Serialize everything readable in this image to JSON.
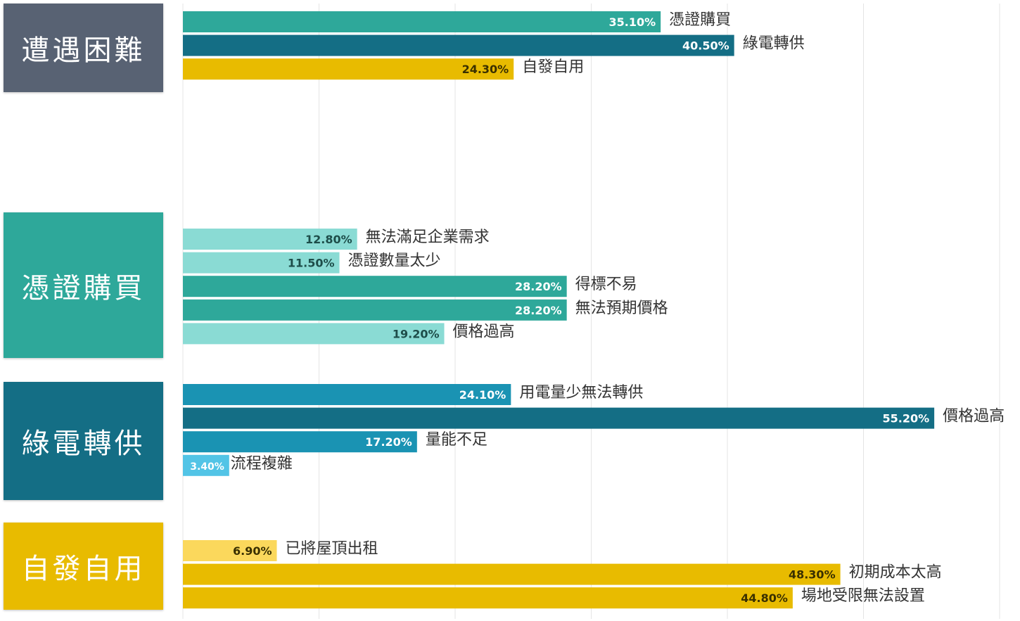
{
  "chart_data": {
    "type": "bar",
    "orientation": "horizontal",
    "unit": "%",
    "xlim": [
      0,
      60
    ],
    "grid": true,
    "groups": [
      {
        "title": "遭遇困難",
        "color": "#586273",
        "bars": [
          {
            "label": "憑證購買",
            "value": 35.1,
            "display": "35.10%",
            "color": "#2ea89a",
            "text_color": "#ffffff"
          },
          {
            "label": "綠電轉供",
            "value": 40.5,
            "display": "40.50%",
            "color": "#146e85",
            "text_color": "#ffffff"
          },
          {
            "label": "自發自用",
            "value": 24.3,
            "display": "24.30%",
            "color": "#e8bb00",
            "text_color": "#3a3000"
          }
        ]
      },
      {
        "title": "憑證購買",
        "color": "#2ea89a",
        "bars": [
          {
            "label": "無法滿足企業需求",
            "value": 12.8,
            "display": "12.80%",
            "color": "#8adbd4",
            "text_color": "#1d4d49"
          },
          {
            "label": "憑證數量太少",
            "value": 11.5,
            "display": "11.50%",
            "color": "#8adbd4",
            "text_color": "#1d4d49"
          },
          {
            "label": "得標不易",
            "value": 28.2,
            "display": "28.20%",
            "color": "#2ea89a",
            "text_color": "#ffffff"
          },
          {
            "label": "無法預期價格",
            "value": 28.2,
            "display": "28.20%",
            "color": "#2ea89a",
            "text_color": "#ffffff"
          },
          {
            "label": "價格過高",
            "value": 19.2,
            "display": "19.20%",
            "color": "#8adbd4",
            "text_color": "#1d4d49"
          }
        ]
      },
      {
        "title": "綠電轉供",
        "color": "#146e85",
        "bars": [
          {
            "label": "用電量少無法轉供",
            "value": 24.1,
            "display": "24.10%",
            "color": "#1a93b3",
            "text_color": "#ffffff"
          },
          {
            "label": "價格過高",
            "value": 55.2,
            "display": "55.20%",
            "color": "#146e85",
            "text_color": "#ffffff"
          },
          {
            "label": "量能不足",
            "value": 17.2,
            "display": "17.20%",
            "color": "#1a93b3",
            "text_color": "#ffffff"
          },
          {
            "label": "流程複雜",
            "value": 3.4,
            "display": "3.40%",
            "color": "#52c4e6",
            "text_color": "#ffffff"
          }
        ]
      },
      {
        "title": "自發自用",
        "color": "#e8bb00",
        "bars": [
          {
            "label": "已將屋頂出租",
            "value": 6.9,
            "display": "6.90%",
            "color": "#fbd85c",
            "text_color": "#3a3000"
          },
          {
            "label": "初期成本太高",
            "value": 48.3,
            "display": "48.30%",
            "color": "#e8bb00",
            "text_color": "#3a3000"
          },
          {
            "label": "場地受限無法設置",
            "value": 44.8,
            "display": "44.80%",
            "color": "#e8bb00",
            "text_color": "#3a3000"
          }
        ]
      }
    ]
  }
}
